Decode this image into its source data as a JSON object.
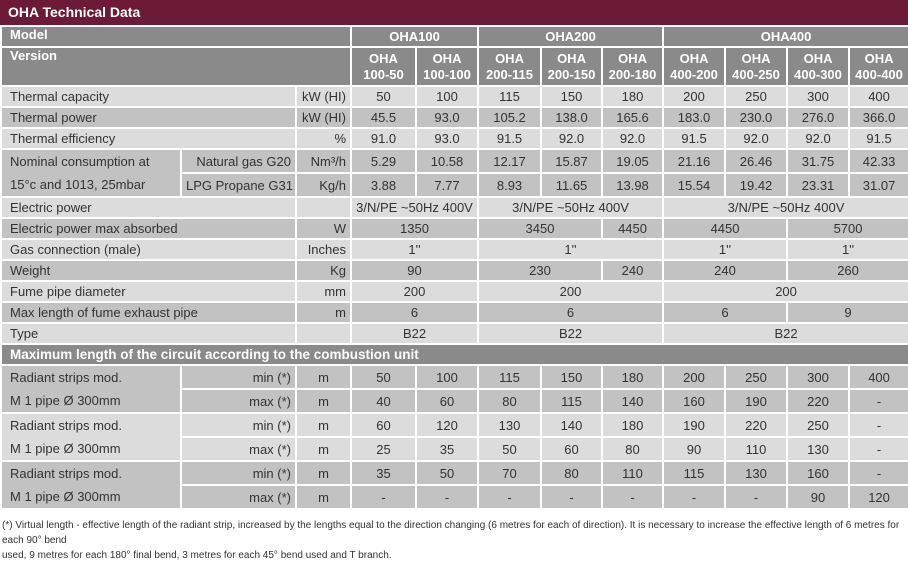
{
  "title": "OHA Technical Data",
  "header": {
    "model_label": "Model",
    "version_label": "Version",
    "models": [
      "OHA100",
      "OHA200",
      "OHA400"
    ],
    "versions": [
      [
        "OHA",
        "100-50"
      ],
      [
        "OHA",
        "100-100"
      ],
      [
        "OHA",
        "200-115"
      ],
      [
        "OHA",
        "200-150"
      ],
      [
        "OHA",
        "200-180"
      ],
      [
        "OHA",
        "400-200"
      ],
      [
        "OHA",
        "400-250"
      ],
      [
        "OHA",
        "400-300"
      ],
      [
        "OHA",
        "400-400"
      ]
    ]
  },
  "rows": [
    {
      "label": "Thermal capacity",
      "unit": "kW (HI)",
      "values": [
        "50",
        "100",
        "115",
        "150",
        "180",
        "200",
        "250",
        "300",
        "400"
      ]
    },
    {
      "label": "Thermal power",
      "unit": "kW (HI)",
      "values": [
        "45.5",
        "93.0",
        "105.2",
        "138.0",
        "165.6",
        "183.0",
        "230.0",
        "276.0",
        "366.0"
      ]
    },
    {
      "label": "Thermal efficiency",
      "unit": "%",
      "values": [
        "91.0",
        "93.0",
        "91.5",
        "92.0",
        "92.0",
        "91.5",
        "92.0",
        "92.0",
        "91.5"
      ]
    }
  ],
  "consumption": {
    "label": [
      "Nominal consumption at",
      "15°c and 1013, 25mbar"
    ],
    "rows": [
      {
        "sub": "Natural gas G20",
        "unit": "Nm³/h",
        "values": [
          "5.29",
          "10.58",
          "12.17",
          "15.87",
          "19.05",
          "21.16",
          "26.46",
          "31.75",
          "42.33"
        ]
      },
      {
        "sub": "LPG Propane G31",
        "unit": "Kg/h",
        "values": [
          "3.88",
          "7.77",
          "8.93",
          "11.65",
          "13.98",
          "15.54",
          "19.42",
          "23.31",
          "31.07"
        ]
      }
    ]
  },
  "merged_rows": [
    {
      "label": "Electric power",
      "unit": "",
      "values": [
        "3/N/PE ~50Hz 400V",
        "3/N/PE ~50Hz 400V",
        "3/N/PE ~50Hz 400V"
      ]
    },
    {
      "label": "Electric power max absorbed",
      "unit": "W",
      "values": [
        "1350",
        "3450",
        "4450",
        "4450",
        "5700"
      ]
    },
    {
      "label": "Gas connection (male)",
      "unit": "Inches",
      "values": [
        "1''",
        "1''",
        "1''",
        "1''"
      ]
    },
    {
      "label": "Weight",
      "unit": "Kg",
      "values": [
        "90",
        "230",
        "240",
        "240",
        "260"
      ]
    },
    {
      "label": "Fume pipe diameter",
      "unit": "mm",
      "values": [
        "200",
        "200",
        "200"
      ]
    },
    {
      "label": "Max length of fume exhaust pipe",
      "unit": "m",
      "values": [
        "6",
        "6",
        "6",
        "9"
      ]
    },
    {
      "label": "Type",
      "unit": "",
      "values": [
        "B22",
        "B22",
        "B22"
      ]
    }
  ],
  "circuit": {
    "title": "Maximum length of the circuit according to the combustion unit",
    "groups": [
      {
        "label": [
          "Radiant strips mod.",
          "M 1 pipe Ø 300mm"
        ],
        "rows": [
          {
            "sub": "min (*)",
            "unit": "m",
            "values": [
              "50",
              "100",
              "115",
              "150",
              "180",
              "200",
              "250",
              "300",
              "400"
            ]
          },
          {
            "sub": "max (*)",
            "unit": "m",
            "values": [
              "40",
              "60",
              "80",
              "115",
              "140",
              "160",
              "190",
              "220",
              "-"
            ]
          }
        ]
      },
      {
        "label": [
          "Radiant strips mod.",
          "M 1 pipe Ø 300mm"
        ],
        "rows": [
          {
            "sub": "min (*)",
            "unit": "m",
            "values": [
              "60",
              "120",
              "130",
              "140",
              "180",
              "190",
              "220",
              "250",
              "-"
            ]
          },
          {
            "sub": "max (*)",
            "unit": "m",
            "values": [
              "25",
              "35",
              "50",
              "60",
              "80",
              "90",
              "110",
              "130",
              "-"
            ]
          }
        ]
      },
      {
        "label": [
          "Radiant strips mod.",
          "M 1 pipe Ø 300mm"
        ],
        "rows": [
          {
            "sub": "min (*)",
            "unit": "m",
            "values": [
              "35",
              "50",
              "70",
              "80",
              "110",
              "115",
              "130",
              "160",
              "-"
            ]
          },
          {
            "sub": "max (*)",
            "unit": "m",
            "values": [
              "-",
              "-",
              "-",
              "-",
              "-",
              "-",
              "-",
              "90",
              "120"
            ]
          }
        ]
      }
    ]
  },
  "footnote": [
    "(*) Virtual length - effective length of the radiant strip, increased by the lengths equal to the direction changing (6 metres for each of direction). It is necessary to increase the effective length of 6 metres for each 90° bend",
    "used, 9 metres for each 180° final bend, 3 metres for each 45° bend used and T branch."
  ]
}
